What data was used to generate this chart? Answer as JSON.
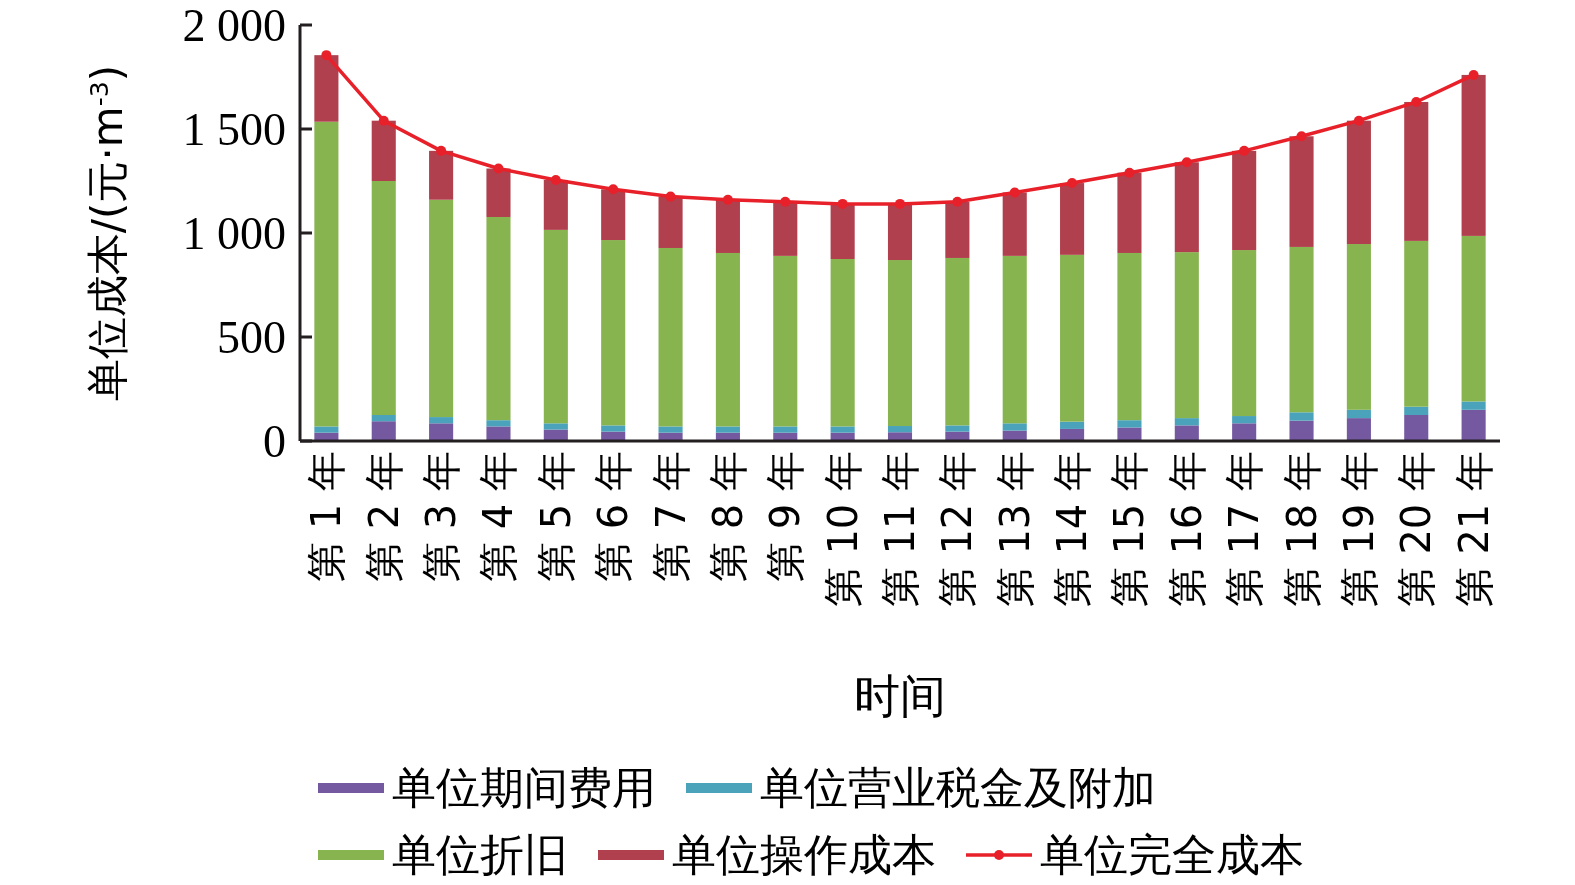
{
  "chart_data": {
    "type": "bar",
    "stacked": true,
    "xlabel": "时间",
    "ylabel": "单位成本/(元·m$^{-3}$)",
    "categories": [
      "第 1 年",
      "第 2 年",
      "第 3 年",
      "第 4 年",
      "第 5 年",
      "第 6 年",
      "第 7 年",
      "第 8 年",
      "第 9 年",
      "第 10 年",
      "第 11 年",
      "第 12 年",
      "第 13 年",
      "第 14 年",
      "第 15 年",
      "第 16 年",
      "第 17 年",
      "第 18 年",
      "第 19 年",
      "第 20 年",
      "第 21 年"
    ],
    "ylim": [
      0,
      2000
    ],
    "yticks": [
      {
        "value": 0,
        "label": "0"
      },
      {
        "value": 500,
        "label": "500"
      },
      {
        "value": 1000,
        "label": "1 000"
      },
      {
        "value": 1500,
        "label": "1 500"
      },
      {
        "value": 2000,
        "label": "2 000"
      }
    ],
    "legend": "bottom",
    "grid": false,
    "series": [
      {
        "name": "单位期间费用",
        "color": "#7458a0",
        "values": [
          40,
          95,
          85,
          70,
          55,
          45,
          40,
          40,
          40,
          40,
          42,
          45,
          50,
          58,
          65,
          75,
          85,
          98,
          110,
          125,
          150
        ]
      },
      {
        "name": "单位营业税金及附加",
        "color": "#4aa3bb",
        "values": [
          30,
          30,
          30,
          30,
          30,
          30,
          30,
          30,
          30,
          30,
          30,
          30,
          35,
          35,
          35,
          35,
          35,
          40,
          40,
          40,
          40
        ]
      },
      {
        "name": "单位折旧",
        "color": "#88b450",
        "values": [
          1465,
          1125,
          1045,
          977,
          930,
          891,
          858,
          834,
          820,
          805,
          798,
          805,
          805,
          802,
          804,
          798,
          798,
          795,
          797,
          797,
          796
        ]
      },
      {
        "name": "单位操作成本",
        "color": "#b0404e",
        "values": [
          320,
          290,
          235,
          233,
          240,
          244,
          247,
          256,
          260,
          265,
          270,
          270,
          305,
          345,
          386,
          432,
          477,
          532,
          593,
          668,
          774
        ]
      },
      {
        "name": "单位完全成本",
        "type": "line",
        "color": "#e8202a",
        "marker": "circle",
        "values": [
          1855,
          1540,
          1395,
          1310,
          1255,
          1210,
          1175,
          1160,
          1150,
          1140,
          1140,
          1150,
          1195,
          1240,
          1290,
          1340,
          1395,
          1465,
          1540,
          1630,
          1760
        ]
      }
    ]
  }
}
